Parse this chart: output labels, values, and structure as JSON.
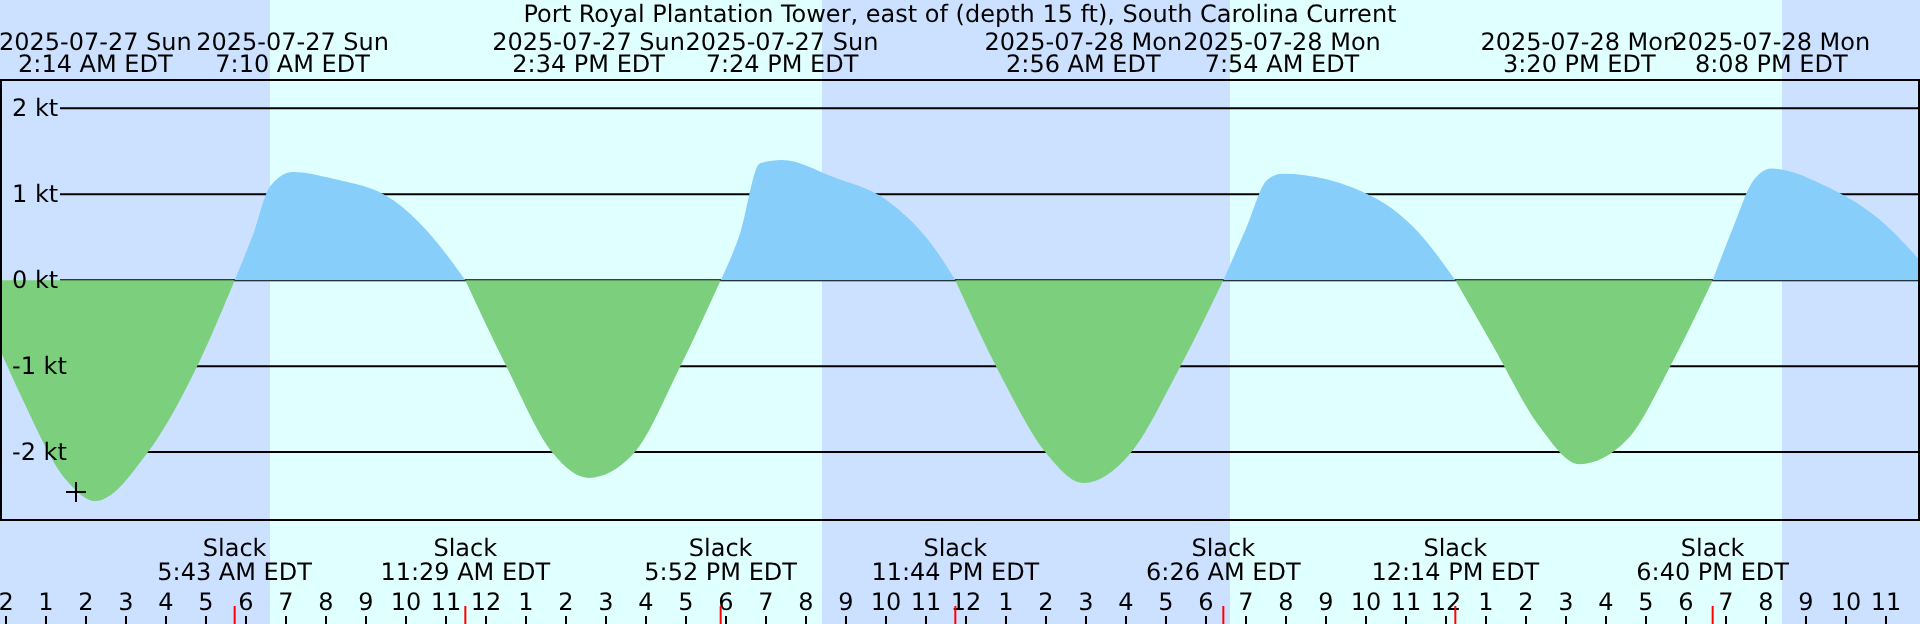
{
  "chart_data": {
    "type": "area",
    "title": "Port Royal Plantation Tower, east of (depth 15 ft), South Carolina Current",
    "x": [
      "2025-07-26T23:51",
      "2025-07-27T00:21",
      "2025-07-27T01:31",
      "2025-07-27T02:14",
      "2025-07-27T03:31",
      "2025-07-27T04:51",
      "2025-07-27T05:43",
      "2025-07-27T06:11",
      "2025-07-27T06:36",
      "2025-07-27T07:10",
      "2025-07-27T08:11",
      "2025-07-27T09:41",
      "2025-07-27T10:31",
      "2025-07-27T11:29",
      "2025-07-27T12:31",
      "2025-07-27T13:41",
      "2025-07-27T14:34",
      "2025-07-27T15:41",
      "2025-07-27T16:51",
      "2025-07-27T17:52",
      "2025-07-27T18:21",
      "2025-07-27T18:51",
      "2025-07-27T19:24",
      "2025-07-27T20:41",
      "2025-07-27T22:01",
      "2025-07-27T23:11",
      "2025-07-27T23:44",
      "2025-07-28T00:51",
      "2025-07-28T02:01",
      "2025-07-28T02:56",
      "2025-07-28T04:06",
      "2025-07-28T05:21",
      "2025-07-28T06:26",
      "2025-07-28T07:01",
      "2025-07-28T07:31",
      "2025-07-28T07:54",
      "2025-07-28T10:11",
      "2025-07-28T11:11",
      "2025-07-28T12:14",
      "2025-07-28T13:11",
      "2025-07-28T14:21",
      "2025-07-28T15:20",
      "2025-07-28T16:31",
      "2025-07-28T17:41",
      "2025-07-28T18:40",
      "2025-07-28T19:11",
      "2025-07-28T19:41",
      "2025-07-28T20:08",
      "2025-07-28T21:31",
      "2025-07-28T22:51",
      "2025-07-28T23:51"
    ],
    "series": [
      {
        "color": "#87cefa",
        "values": [
          null,
          null,
          null,
          null,
          null,
          null,
          0,
          0.54,
          1.09,
          1.26,
          1.18,
          0.93,
          0.58,
          0,
          null,
          null,
          null,
          null,
          null,
          0,
          0.54,
          1.36,
          1.4,
          1.2,
          0.93,
          0.39,
          0,
          null,
          null,
          null,
          null,
          null,
          0,
          0.62,
          1.16,
          1.24,
          0.97,
          0.62,
          0,
          null,
          null,
          null,
          null,
          null,
          0,
          0.62,
          1.16,
          1.3,
          1.09,
          0.7,
          0.23
        ]
      },
      {
        "color": "#7ccf7c",
        "values": [
          -0.81,
          -1.32,
          -2.33,
          -2.57,
          -2.02,
          -0.93,
          0,
          null,
          null,
          null,
          null,
          null,
          null,
          0,
          -1.01,
          -2.02,
          -2.3,
          -2.02,
          -1.01,
          0,
          null,
          null,
          null,
          null,
          null,
          null,
          0,
          -1.09,
          -2.02,
          -2.36,
          -2.02,
          -1.01,
          0,
          null,
          null,
          null,
          null,
          null,
          0,
          -0.77,
          -1.71,
          -2.14,
          -1.86,
          -0.93,
          0,
          null,
          null,
          null,
          null,
          null,
          null
        ]
      }
    ],
    "xlim": [
      "2025-07-26T23:51",
      "2025-07-28T23:51"
    ],
    "xticks": [
      {
        "value": "2025-07-27T00:00",
        "label": "2"
      },
      {
        "value": "2025-07-27T01:00",
        "label": "1"
      },
      {
        "value": "2025-07-27T02:00",
        "label": "2"
      },
      {
        "value": "2025-07-27T03:00",
        "label": "3"
      },
      {
        "value": "2025-07-27T04:00",
        "label": "4"
      },
      {
        "value": "2025-07-27T05:00",
        "label": "5"
      },
      {
        "value": "2025-07-27T06:00",
        "label": "6"
      },
      {
        "value": "2025-07-27T07:00",
        "label": "7"
      },
      {
        "value": "2025-07-27T08:00",
        "label": "8"
      },
      {
        "value": "2025-07-27T09:00",
        "label": "9"
      },
      {
        "value": "2025-07-27T10:00",
        "label": "10"
      },
      {
        "value": "2025-07-27T11:00",
        "label": "11"
      },
      {
        "value": "2025-07-27T12:00",
        "label": "12"
      },
      {
        "value": "2025-07-27T13:00",
        "label": "1"
      },
      {
        "value": "2025-07-27T14:00",
        "label": "2"
      },
      {
        "value": "2025-07-27T15:00",
        "label": "3"
      },
      {
        "value": "2025-07-27T16:00",
        "label": "4"
      },
      {
        "value": "2025-07-27T17:00",
        "label": "5"
      },
      {
        "value": "2025-07-27T18:00",
        "label": "6"
      },
      {
        "value": "2025-07-27T19:00",
        "label": "7"
      },
      {
        "value": "2025-07-27T20:00",
        "label": "8"
      },
      {
        "value": "2025-07-27T21:00",
        "label": "9"
      },
      {
        "value": "2025-07-27T22:00",
        "label": "10"
      },
      {
        "value": "2025-07-27T23:00",
        "label": "11"
      },
      {
        "value": "2025-07-28T00:00",
        "label": "12"
      },
      {
        "value": "2025-07-28T01:00",
        "label": "1"
      },
      {
        "value": "2025-07-28T02:00",
        "label": "2"
      },
      {
        "value": "2025-07-28T03:00",
        "label": "3"
      },
      {
        "value": "2025-07-28T04:00",
        "label": "4"
      },
      {
        "value": "2025-07-28T05:00",
        "label": "5"
      },
      {
        "value": "2025-07-28T06:00",
        "label": "6"
      },
      {
        "value": "2025-07-28T07:00",
        "label": "7"
      },
      {
        "value": "2025-07-28T08:00",
        "label": "8"
      },
      {
        "value": "2025-07-28T09:00",
        "label": "9"
      },
      {
        "value": "2025-07-28T10:00",
        "label": "10"
      },
      {
        "value": "2025-07-28T11:00",
        "label": "11"
      },
      {
        "value": "2025-07-28T12:00",
        "label": "12"
      },
      {
        "value": "2025-07-28T13:00",
        "label": "1"
      },
      {
        "value": "2025-07-28T14:00",
        "label": "2"
      },
      {
        "value": "2025-07-28T15:00",
        "label": "3"
      },
      {
        "value": "2025-07-28T16:00",
        "label": "4"
      },
      {
        "value": "2025-07-28T17:00",
        "label": "5"
      },
      {
        "value": "2025-07-28T18:00",
        "label": "6"
      },
      {
        "value": "2025-07-28T19:00",
        "label": "7"
      },
      {
        "value": "2025-07-28T20:00",
        "label": "8"
      },
      {
        "value": "2025-07-28T21:00",
        "label": "9"
      },
      {
        "value": "2025-07-28T22:00",
        "label": "10"
      },
      {
        "value": "2025-07-28T23:00",
        "label": "11"
      }
    ],
    "ylim": [
      -2.79,
      2.33
    ],
    "yticks": [
      {
        "value": -2,
        "label": "-2 kt"
      },
      {
        "value": -1,
        "label": "-1 kt"
      },
      {
        "value": 0,
        "label": "0 kt"
      },
      {
        "value": 1,
        "label": "1 kt"
      },
      {
        "value": 2,
        "label": "2 kt"
      }
    ],
    "grid": "y",
    "bands": [
      {
        "axis": "x",
        "from": "2025-07-26T23:51",
        "to": "2025-07-27T06:36",
        "color": "#cce0ff"
      },
      {
        "axis": "x",
        "from": "2025-07-27T06:36",
        "to": "2025-07-27T20:24",
        "color": "#e0ffff"
      },
      {
        "axis": "x",
        "from": "2025-07-27T20:24",
        "to": "2025-07-28T06:36",
        "color": "#cce0ff"
      },
      {
        "axis": "x",
        "from": "2025-07-28T06:36",
        "to": "2025-07-28T20:24",
        "color": "#e0ffff"
      },
      {
        "axis": "x",
        "from": "2025-07-28T20:24",
        "to": "2025-07-28T23:51",
        "color": "#cce0ff"
      }
    ],
    "ref_lines": [
      {
        "axis": "x",
        "value": "2025-07-27T05:43",
        "label": "Slack\n5:43 AM EDT",
        "color": "#ff0000"
      },
      {
        "axis": "x",
        "value": "2025-07-27T11:29",
        "label": "Slack\n11:29 AM EDT",
        "color": "#ff0000"
      },
      {
        "axis": "x",
        "value": "2025-07-27T17:52",
        "label": "Slack\n5:52 PM EDT",
        "color": "#ff0000"
      },
      {
        "axis": "x",
        "value": "2025-07-27T23:44",
        "label": "Slack\n11:44 PM EDT",
        "color": "#ff0000"
      },
      {
        "axis": "x",
        "value": "2025-07-28T06:26",
        "label": "Slack\n6:26 AM EDT",
        "color": "#ff0000"
      },
      {
        "axis": "x",
        "value": "2025-07-28T12:14",
        "label": "Slack\n12:14 PM EDT",
        "color": "#ff0000"
      },
      {
        "axis": "x",
        "value": "2025-07-28T18:40",
        "label": "Slack\n6:40 PM EDT",
        "color": "#ff0000"
      }
    ],
    "annotations": [
      "2025-07-27 Sun\n2:14 AM EDT",
      "2025-07-27 Sun\n7:10 AM EDT",
      "2025-07-27 Sun\n2:34 PM EDT",
      "2025-07-27 Sun\n7:24 PM EDT",
      "2025-07-28 Mon\n2:56 AM EDT",
      "2025-07-28 Mon\n7:54 AM EDT",
      "2025-07-28 Mon\n3:20 PM EDT",
      "2025-07-28 Mon\n8:08 PM EDT"
    ]
  }
}
